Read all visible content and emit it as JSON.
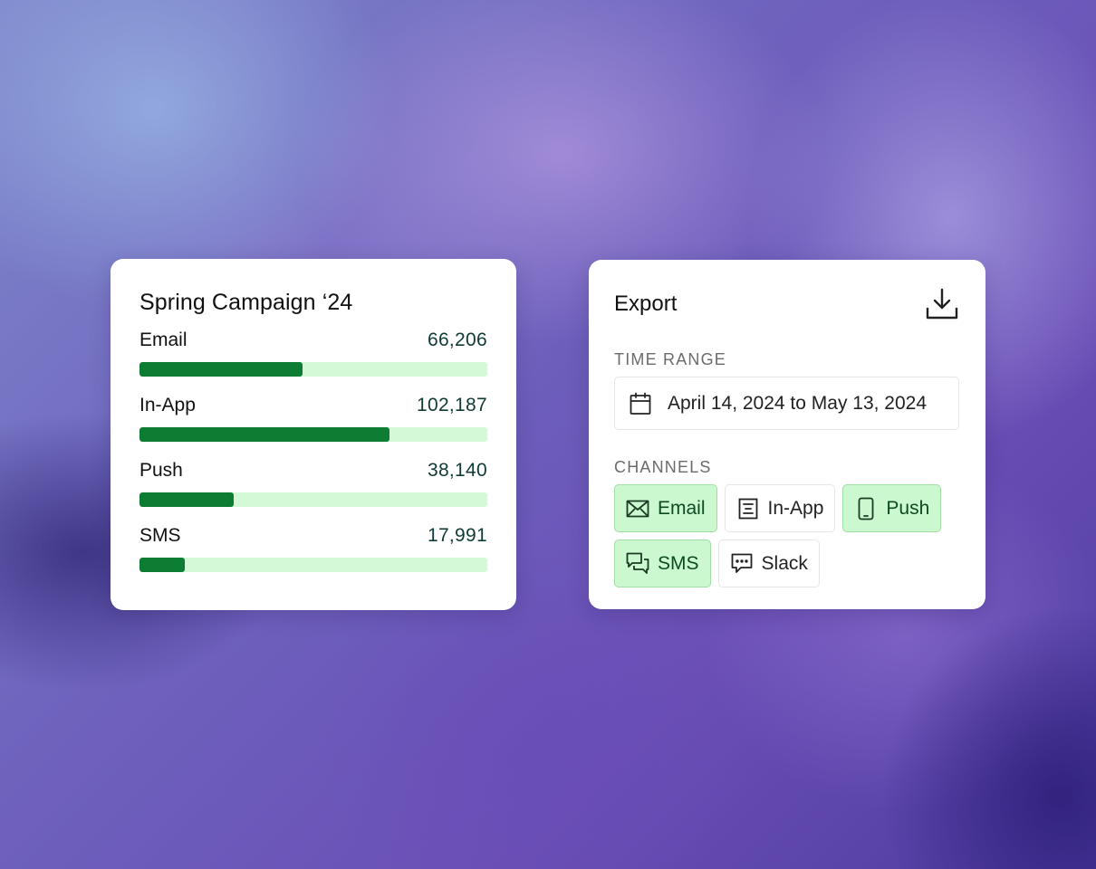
{
  "campaign": {
    "title": "Spring Campaign ‘24",
    "channels": [
      {
        "label": "Email",
        "value": "66,206",
        "fill_fraction": 0.47
      },
      {
        "label": "In-App",
        "value": "102,187",
        "fill_fraction": 0.72
      },
      {
        "label": "Push",
        "value": "38,140",
        "fill_fraction": 0.27
      },
      {
        "label": "SMS",
        "value": "17,991",
        "fill_fraction": 0.13
      }
    ]
  },
  "export": {
    "title": "Export",
    "download_icon": "download-icon",
    "time_range_label": "TIME RANGE",
    "date_range": "April 14, 2024 to May 13, 2024",
    "calendar_icon": "calendar-icon",
    "channels_label": "CHANNELS",
    "chips": [
      {
        "label": "Email",
        "icon": "envelope-icon",
        "selected": true
      },
      {
        "label": "In-App",
        "icon": "in-app-icon",
        "selected": false
      },
      {
        "label": "Push",
        "icon": "phone-icon",
        "selected": true
      },
      {
        "label": "SMS",
        "icon": "sms-icon",
        "selected": true
      },
      {
        "label": "Slack",
        "icon": "chat-icon",
        "selected": false
      }
    ]
  },
  "colors": {
    "bar_fill": "#0c7d32",
    "bar_track": "#d4f9d6",
    "chip_selected_bg": "#ccf8cf",
    "chip_selected_border": "#9fdfa6"
  }
}
